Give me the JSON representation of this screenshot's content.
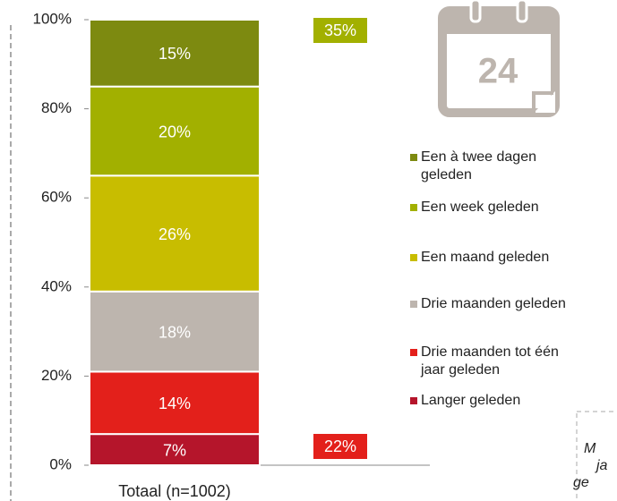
{
  "chart_data": {
    "type": "stacked_bar",
    "categories": [
      "Totaal (n=1002)"
    ],
    "series": [
      {
        "name": "Langer geleden",
        "color": "#b5152b",
        "values": [
          7
        ],
        "value_labels": [
          "7%"
        ]
      },
      {
        "name": "Drie maanden tot één jaar geleden",
        "color": "#e3201b",
        "values": [
          14
        ],
        "value_labels": [
          "14%"
        ]
      },
      {
        "name": "Drie maanden geleden",
        "color": "#bdb5ae",
        "values": [
          18
        ],
        "value_labels": [
          "18%"
        ]
      },
      {
        "name": "Een maand geleden",
        "color": "#c8bd00",
        "values": [
          26
        ],
        "value_labels": [
          "26%"
        ]
      },
      {
        "name": "Een week geleden",
        "color": "#a2b000",
        "values": [
          20
        ],
        "value_labels": [
          "20%"
        ]
      },
      {
        "name": "Een à twee dagen geleden",
        "color": "#7d8a10",
        "values": [
          15
        ],
        "value_labels": [
          "15%"
        ]
      }
    ],
    "ylim": [
      0,
      100
    ],
    "yticks": [
      {
        "value": 0,
        "label": "0%"
      },
      {
        "value": 20,
        "label": "20%"
      },
      {
        "value": 40,
        "label": "40%"
      },
      {
        "value": 60,
        "label": "60%"
      },
      {
        "value": 80,
        "label": "80%"
      },
      {
        "value": 100,
        "label": "100%"
      }
    ],
    "annotations": [
      {
        "text": "35%",
        "color": "#a2b000"
      },
      {
        "text": "22%",
        "color": "#e3201b"
      }
    ],
    "calendar_day": "24",
    "note": [
      "M",
      "ja",
      "ge"
    ]
  }
}
